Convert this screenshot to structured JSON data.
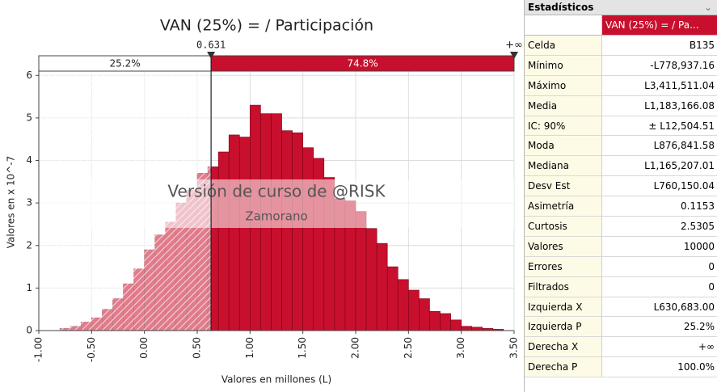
{
  "chart_data": {
    "type": "histogram",
    "title": "VAN (25%) = / Participación",
    "xlabel": "Valores en millones (L)",
    "ylabel": "Valores en x 10^-7",
    "bins": [
      -0.8,
      -0.7,
      -0.6,
      -0.5,
      -0.4,
      -0.3,
      -0.2,
      -0.1,
      0.0,
      0.1,
      0.2,
      0.3,
      0.4,
      0.5,
      0.6,
      0.7,
      0.8,
      0.9,
      1.0,
      1.1,
      1.2,
      1.3,
      1.4,
      1.5,
      1.6,
      1.7,
      1.8,
      1.9,
      2.0,
      2.1,
      2.2,
      2.3,
      2.4,
      2.5,
      2.6,
      2.7,
      2.8,
      2.9,
      3.0,
      3.1,
      3.2,
      3.3,
      3.4
    ],
    "values": [
      0.05,
      0.1,
      0.2,
      0.3,
      0.5,
      0.75,
      1.1,
      1.45,
      1.9,
      2.25,
      2.55,
      3.0,
      3.3,
      3.7,
      3.85,
      4.2,
      4.6,
      4.55,
      5.3,
      5.1,
      5.1,
      4.7,
      4.65,
      4.3,
      4.05,
      3.6,
      3.1,
      3.05,
      2.8,
      2.4,
      2.05,
      1.5,
      1.2,
      0.95,
      0.75,
      0.45,
      0.4,
      0.25,
      0.1,
      0.08,
      0.05,
      0.03
    ],
    "color": "#c8102e",
    "xlim": [
      -1,
      3.5
    ],
    "xticks": [
      {
        "value": -1,
        "label": "-1.00"
      },
      {
        "value": -0.5,
        "label": "-0.50"
      },
      {
        "value": 0,
        "label": "0.00"
      },
      {
        "value": 0.5,
        "label": "0.50"
      },
      {
        "value": 1,
        "label": "1.00"
      },
      {
        "value": 1.5,
        "label": "1.50"
      },
      {
        "value": 2,
        "label": "2.00"
      },
      {
        "value": 2.5,
        "label": "2.50"
      },
      {
        "value": 3,
        "label": "3.00"
      },
      {
        "value": 3.5,
        "label": "3.50"
      }
    ],
    "ylim": [
      0,
      6.1
    ],
    "yticks": [
      0,
      1,
      2,
      3,
      4,
      5,
      6
    ],
    "grid": true,
    "left_delimiter": 0.631,
    "right_delimiter_label": "+∞",
    "regions": {
      "values": [
        25.2,
        74.8
      ],
      "value_labels": [
        "25.2%",
        "74.8%"
      ]
    }
  },
  "watermark": {
    "line1": "Versión de curso de @RISK",
    "line2": "Zamorano"
  },
  "stats_panel": {
    "title": "Estadísticos",
    "column": "VAN (25%) = / Pa...",
    "rows": [
      [
        "Celda",
        "B135"
      ],
      [
        "Mínimo",
        "-L778,937.16"
      ],
      [
        "Máximo",
        "L3,411,511.04"
      ],
      [
        "Media",
        "L1,183,166.08"
      ],
      [
        "IC: 90%",
        "± L12,504.51"
      ],
      [
        "Moda",
        "L876,841.58"
      ],
      [
        "Mediana",
        "L1,165,207.01"
      ],
      [
        "Desv Est",
        "L760,150.04"
      ],
      [
        "Asimetría",
        "0.1153"
      ],
      [
        "Curtosis",
        "2.5305"
      ],
      [
        "Valores",
        "10000"
      ],
      [
        "Errores",
        "0"
      ],
      [
        "Filtrados",
        "0"
      ],
      [
        "Izquierda X",
        "L630,683.00"
      ],
      [
        "Izquierda P",
        "25.2%"
      ],
      [
        "Derecha X",
        "+∞"
      ],
      [
        "Derecha P",
        "100.0%"
      ]
    ]
  }
}
